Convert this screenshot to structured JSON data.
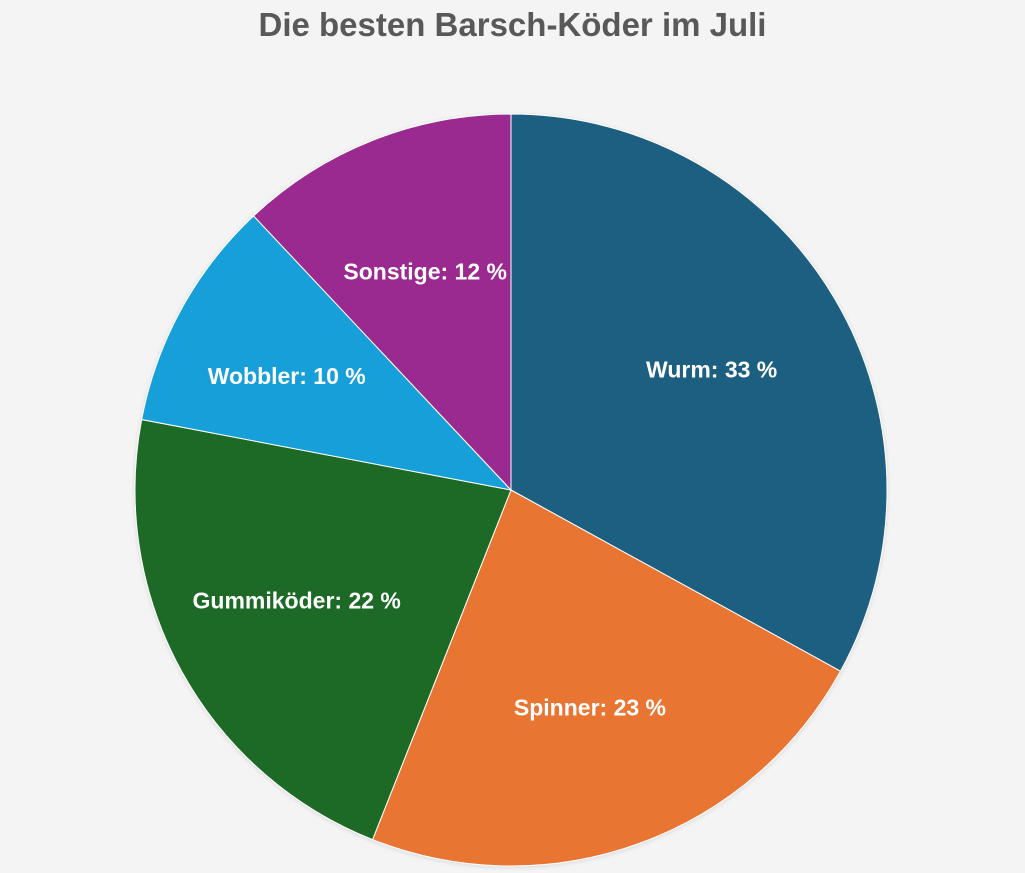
{
  "chart_data": {
    "type": "pie",
    "title": "Die besten Barsch-Köder im Juli",
    "categories": [
      "Wurm",
      "Spinner",
      "Gummiköder",
      "Wobbler",
      "Sonstige"
    ],
    "values": [
      33,
      23,
      22,
      10,
      12
    ],
    "unit": "%",
    "labels": [
      "Wurm: 33 %",
      "Spinner: 23 %",
      "Gummiköder: 22 %",
      "Wobbler: 10 %",
      "Sonstige: 12 %"
    ],
    "colors": [
      "#1b5e80",
      "#e97432",
      "#1e6b28",
      "#179fd8",
      "#9b2a90"
    ],
    "legend": "none",
    "data_labels": "inside"
  }
}
